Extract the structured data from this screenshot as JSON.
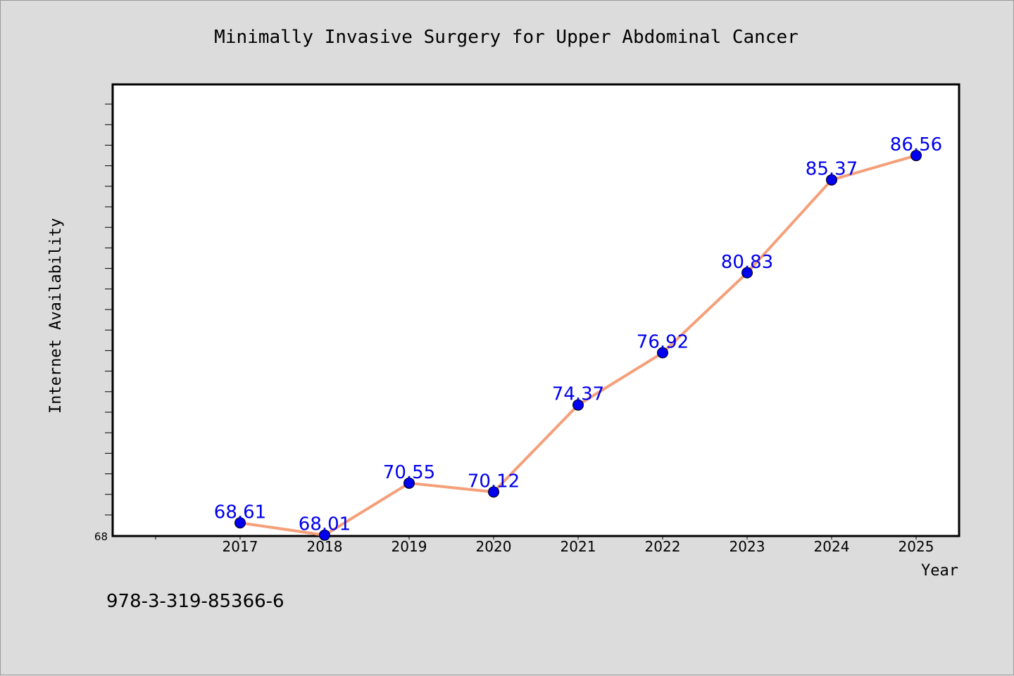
{
  "chart_data": {
    "type": "line",
    "title": "Minimally Invasive Surgery for Upper Abdominal Cancer",
    "xlabel": "Year",
    "ylabel": "Internet Availability",
    "categories": [
      "2017",
      "2018",
      "2019",
      "2020",
      "2021",
      "2022",
      "2023",
      "2024",
      "2025"
    ],
    "series": [
      {
        "values": [
          68.61,
          68.01,
          70.55,
          70.12,
          74.37,
          76.92,
          80.83,
          85.37,
          86.56
        ]
      }
    ],
    "y_tick_label": "68",
    "ylim": [
      68,
      90
    ],
    "grid": false,
    "line_color": "#f4a07a",
    "marker_color": "#0000ee",
    "label_color": "#0000ee",
    "footnote": "978-3-319-85366-6"
  }
}
